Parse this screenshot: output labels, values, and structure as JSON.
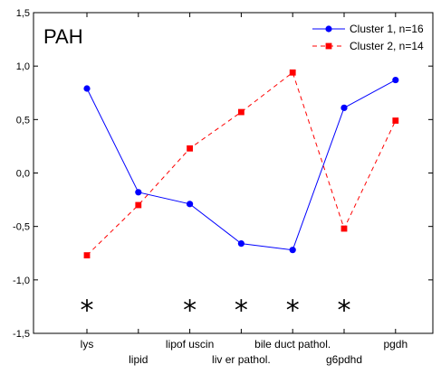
{
  "chart_data": {
    "type": "line",
    "title": "PAH",
    "xlabel": "",
    "ylabel": "",
    "categories": [
      "lys",
      "lipid",
      "lipofuscin",
      "liver pathol.",
      "bile duct pathol.",
      "g6pdhd",
      "pgdh"
    ],
    "category_label_texts": [
      "lys",
      "lipid",
      "lipof uscin",
      "liv er pathol.",
      "bile duct pathol.",
      "g6pdhd",
      "pgdh"
    ],
    "category_label_rows": [
      0,
      1,
      0,
      1,
      0,
      1,
      0
    ],
    "ylim": [
      -1.5,
      1.5
    ],
    "yticks": [
      -1.5,
      -1.0,
      -0.5,
      0.0,
      0.5,
      1.0,
      1.5
    ],
    "ytick_labels": [
      "-1,5",
      "-1,0",
      "-0,5",
      "0,0",
      "0,5",
      "1,0",
      "1,5"
    ],
    "grid": false,
    "legend_position": "top-right",
    "series": [
      {
        "name": "Cluster 1, n=16",
        "color": "#0000ff",
        "marker": "circle",
        "line_style": "solid",
        "values": [
          0.79,
          -0.18,
          -0.29,
          -0.66,
          -0.72,
          0.61,
          0.87
        ]
      },
      {
        "name": "Cluster 2, n=14",
        "color": "#ff0000",
        "marker": "square",
        "line_style": "dashed",
        "values": [
          -0.77,
          -0.3,
          0.23,
          0.57,
          0.94,
          -0.52,
          0.49
        ]
      }
    ],
    "significance": {
      "symbol": "*",
      "categories": [
        "lys",
        "lipofuscin",
        "liver pathol.",
        "bile duct pathol.",
        "g6pdhd"
      ],
      "y": -1.2
    }
  }
}
